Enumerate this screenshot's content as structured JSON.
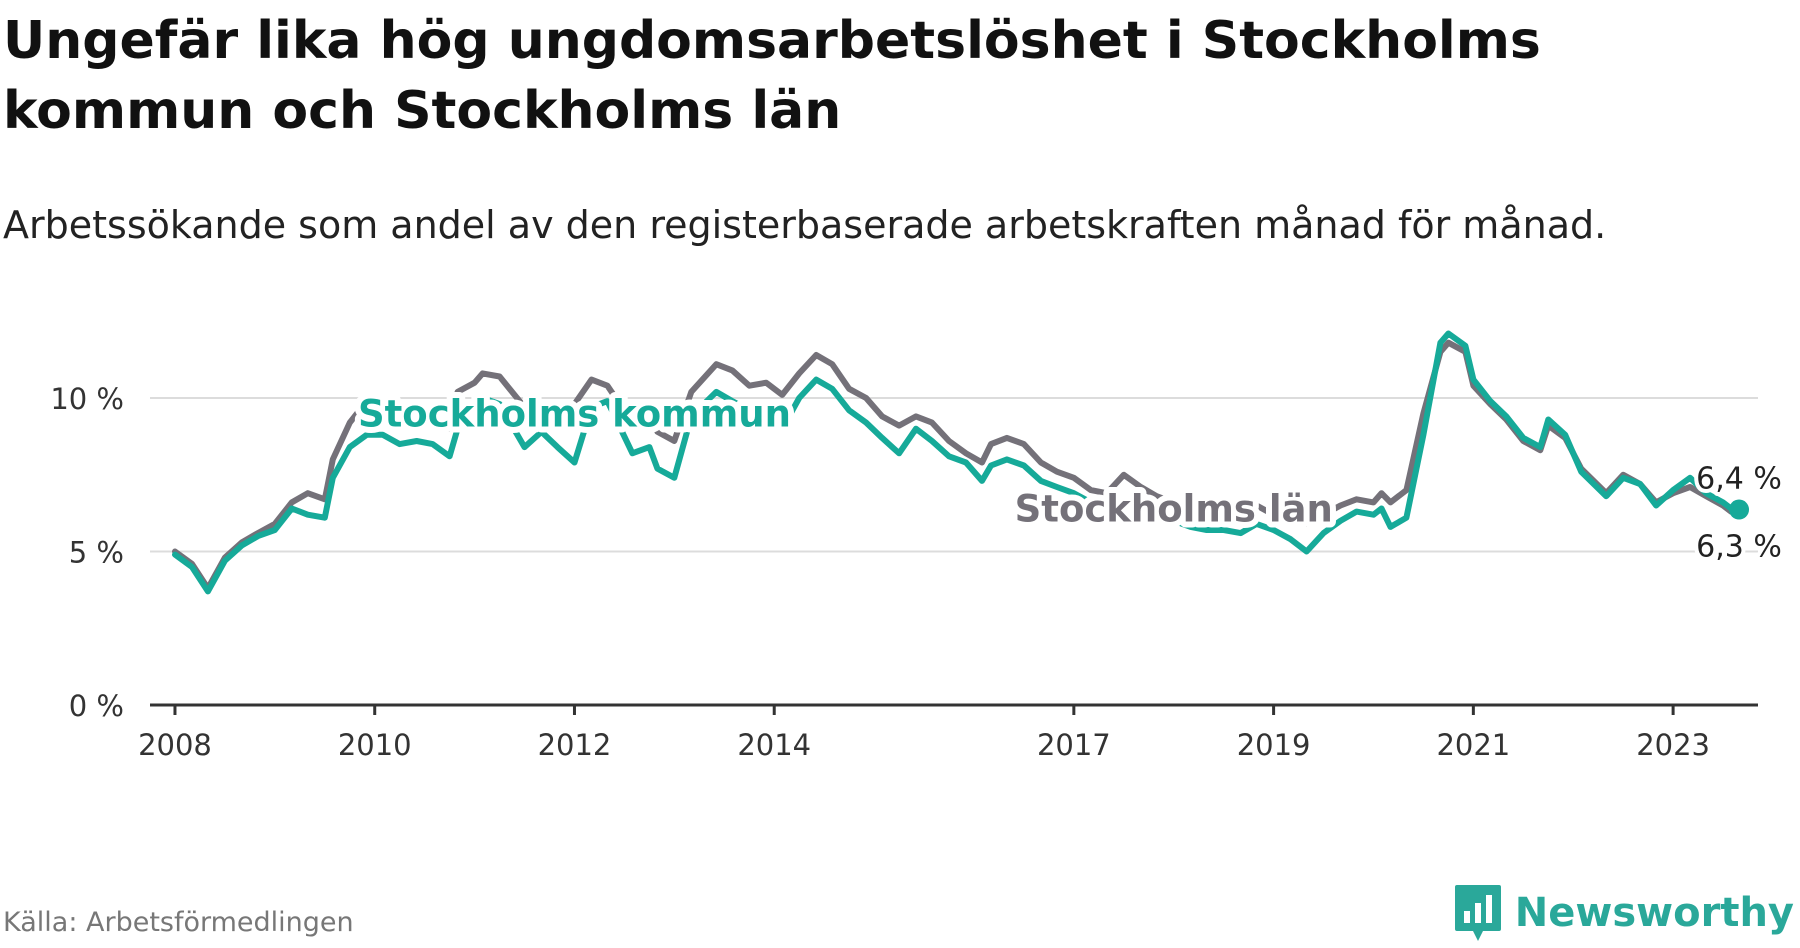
{
  "title": "Ungefär lika hög ungdomsarbetslöshet i Stockholms kommun och Stockholms län",
  "subtitle": "Arbetssökande som andel av den registerbaserade arbetskraften månad för månad.",
  "source": "Källa: Arbetsförmedlingen",
  "brand": "Newsworthy",
  "colors": {
    "kommun": "#16aa99",
    "lan": "#747179",
    "grid": "#dcdcdc",
    "axis": "#333333",
    "brand": "#2aa89a"
  },
  "chart_data": {
    "type": "line",
    "title": "Ungefär lika hög ungdomsarbetslöshet i Stockholms kommun och Stockholms län",
    "xlabel": "",
    "ylabel": "",
    "xlim": [
      2007.75,
      2023.85
    ],
    "ylim": [
      0,
      12.5
    ],
    "y_ticks": [
      0,
      5,
      10
    ],
    "y_tick_labels": [
      "0 %",
      "5 %",
      "10 %"
    ],
    "x_ticks": [
      2008,
      2010,
      2012,
      2014,
      2017,
      2019,
      2021,
      2023
    ],
    "x_tick_labels": [
      "2008",
      "2010",
      "2012",
      "2014",
      "2017",
      "2019",
      "2021",
      "2023"
    ],
    "grid": true,
    "series": [
      {
        "name": "Stockholms län",
        "color": "#747179",
        "end_label": "6,3 %",
        "points": [
          [
            2008.0,
            5.0
          ],
          [
            2008.17,
            4.6
          ],
          [
            2008.33,
            3.8
          ],
          [
            2008.5,
            4.8
          ],
          [
            2008.67,
            5.3
          ],
          [
            2008.83,
            5.6
          ],
          [
            2009.0,
            5.9
          ],
          [
            2009.17,
            6.6
          ],
          [
            2009.33,
            6.9
          ],
          [
            2009.5,
            6.7
          ],
          [
            2009.58,
            8.0
          ],
          [
            2009.75,
            9.2
          ],
          [
            2009.92,
            9.9
          ],
          [
            2010.08,
            9.8
          ],
          [
            2010.25,
            9.5
          ],
          [
            2010.42,
            9.7
          ],
          [
            2010.58,
            9.6
          ],
          [
            2010.75,
            9.0
          ],
          [
            2010.83,
            10.2
          ],
          [
            2011.0,
            10.5
          ],
          [
            2011.08,
            10.8
          ],
          [
            2011.25,
            10.7
          ],
          [
            2011.5,
            9.7
          ],
          [
            2011.67,
            9.8
          ],
          [
            2011.83,
            9.4
          ],
          [
            2012.0,
            9.8
          ],
          [
            2012.17,
            10.6
          ],
          [
            2012.33,
            10.4
          ],
          [
            2012.58,
            9.2
          ],
          [
            2012.75,
            9.7
          ],
          [
            2012.83,
            8.9
          ],
          [
            2013.0,
            8.6
          ],
          [
            2013.17,
            10.2
          ],
          [
            2013.42,
            11.1
          ],
          [
            2013.58,
            10.9
          ],
          [
            2013.75,
            10.4
          ],
          [
            2013.92,
            10.5
          ],
          [
            2014.08,
            10.1
          ],
          [
            2014.25,
            10.8
          ],
          [
            2014.42,
            11.4
          ],
          [
            2014.58,
            11.1
          ],
          [
            2014.75,
            10.3
          ],
          [
            2014.92,
            10.0
          ],
          [
            2015.08,
            9.4
          ],
          [
            2015.25,
            9.1
          ],
          [
            2015.42,
            9.4
          ],
          [
            2015.58,
            9.2
          ],
          [
            2015.75,
            8.6
          ],
          [
            2015.92,
            8.2
          ],
          [
            2016.08,
            7.9
          ],
          [
            2016.17,
            8.5
          ],
          [
            2016.33,
            8.7
          ],
          [
            2016.5,
            8.5
          ],
          [
            2016.67,
            7.9
          ],
          [
            2016.83,
            7.6
          ],
          [
            2017.0,
            7.4
          ],
          [
            2017.17,
            7.0
          ],
          [
            2017.33,
            6.9
          ],
          [
            2017.5,
            7.5
          ],
          [
            2017.67,
            7.1
          ],
          [
            2017.83,
            6.8
          ],
          [
            2018.0,
            6.6
          ],
          [
            2018.17,
            6.5
          ],
          [
            2018.33,
            6.2
          ],
          [
            2018.5,
            6.3
          ],
          [
            2018.67,
            6.1
          ],
          [
            2018.83,
            6.5
          ],
          [
            2019.0,
            6.2
          ],
          [
            2019.17,
            6.1
          ],
          [
            2019.33,
            5.9
          ],
          [
            2019.5,
            6.2
          ],
          [
            2019.67,
            6.5
          ],
          [
            2019.83,
            6.7
          ],
          [
            2020.0,
            6.6
          ],
          [
            2020.08,
            6.9
          ],
          [
            2020.17,
            6.6
          ],
          [
            2020.33,
            7.0
          ],
          [
            2020.5,
            9.5
          ],
          [
            2020.67,
            11.5
          ],
          [
            2020.75,
            11.8
          ],
          [
            2020.92,
            11.5
          ],
          [
            2021.0,
            10.4
          ],
          [
            2021.17,
            9.8
          ],
          [
            2021.33,
            9.3
          ],
          [
            2021.5,
            8.6
          ],
          [
            2021.67,
            8.3
          ],
          [
            2021.75,
            9.1
          ],
          [
            2021.92,
            8.7
          ],
          [
            2022.08,
            7.7
          ],
          [
            2022.33,
            6.9
          ],
          [
            2022.5,
            7.5
          ],
          [
            2022.67,
            7.2
          ],
          [
            2022.83,
            6.6
          ],
          [
            2023.0,
            6.9
          ],
          [
            2023.17,
            7.1
          ],
          [
            2023.33,
            6.8
          ],
          [
            2023.5,
            6.5
          ],
          [
            2023.58,
            6.3
          ]
        ]
      },
      {
        "name": "Stockholms kommun",
        "color": "#16aa99",
        "end_label": "6,4 %",
        "points": [
          [
            2008.0,
            4.9
          ],
          [
            2008.17,
            4.5
          ],
          [
            2008.33,
            3.7
          ],
          [
            2008.5,
            4.7
          ],
          [
            2008.67,
            5.2
          ],
          [
            2008.83,
            5.5
          ],
          [
            2009.0,
            5.7
          ],
          [
            2009.17,
            6.4
          ],
          [
            2009.33,
            6.2
          ],
          [
            2009.5,
            6.1
          ],
          [
            2009.58,
            7.4
          ],
          [
            2009.75,
            8.4
          ],
          [
            2009.92,
            8.8
          ],
          [
            2010.08,
            8.8
          ],
          [
            2010.25,
            8.5
          ],
          [
            2010.42,
            8.6
          ],
          [
            2010.58,
            8.5
          ],
          [
            2010.75,
            8.1
          ],
          [
            2010.83,
            9.0
          ],
          [
            2011.0,
            9.5
          ],
          [
            2011.08,
            10.0
          ],
          [
            2011.25,
            9.8
          ],
          [
            2011.5,
            8.4
          ],
          [
            2011.67,
            8.9
          ],
          [
            2011.83,
            8.4
          ],
          [
            2012.0,
            7.9
          ],
          [
            2012.17,
            9.7
          ],
          [
            2012.33,
            9.9
          ],
          [
            2012.58,
            8.2
          ],
          [
            2012.75,
            8.4
          ],
          [
            2012.83,
            7.7
          ],
          [
            2013.0,
            7.4
          ],
          [
            2013.17,
            9.4
          ],
          [
            2013.42,
            10.2
          ],
          [
            2013.58,
            9.9
          ],
          [
            2013.75,
            9.6
          ],
          [
            2013.92,
            9.5
          ],
          [
            2014.08,
            9.0
          ],
          [
            2014.25,
            10.0
          ],
          [
            2014.42,
            10.6
          ],
          [
            2014.58,
            10.3
          ],
          [
            2014.75,
            9.6
          ],
          [
            2014.92,
            9.2
          ],
          [
            2015.08,
            8.7
          ],
          [
            2015.25,
            8.2
          ],
          [
            2015.42,
            9.0
          ],
          [
            2015.58,
            8.6
          ],
          [
            2015.75,
            8.1
          ],
          [
            2015.92,
            7.9
          ],
          [
            2016.08,
            7.3
          ],
          [
            2016.17,
            7.8
          ],
          [
            2016.33,
            8.0
          ],
          [
            2016.5,
            7.8
          ],
          [
            2016.67,
            7.3
          ],
          [
            2016.83,
            7.1
          ],
          [
            2017.0,
            6.9
          ],
          [
            2017.17,
            6.6
          ],
          [
            2017.33,
            6.1
          ],
          [
            2017.5,
            6.0
          ],
          [
            2017.67,
            6.2
          ],
          [
            2017.83,
            6.1
          ],
          [
            2018.0,
            6.0
          ],
          [
            2018.17,
            5.8
          ],
          [
            2018.33,
            5.7
          ],
          [
            2018.5,
            5.7
          ],
          [
            2018.67,
            5.6
          ],
          [
            2018.83,
            5.9
          ],
          [
            2019.0,
            5.7
          ],
          [
            2019.17,
            5.4
          ],
          [
            2019.33,
            5.0
          ],
          [
            2019.5,
            5.6
          ],
          [
            2019.67,
            6.0
          ],
          [
            2019.83,
            6.3
          ],
          [
            2020.0,
            6.2
          ],
          [
            2020.08,
            6.4
          ],
          [
            2020.17,
            5.8
          ],
          [
            2020.33,
            6.1
          ],
          [
            2020.5,
            8.8
          ],
          [
            2020.67,
            11.8
          ],
          [
            2020.75,
            12.1
          ],
          [
            2020.92,
            11.7
          ],
          [
            2021.0,
            10.6
          ],
          [
            2021.17,
            9.9
          ],
          [
            2021.33,
            9.4
          ],
          [
            2021.5,
            8.7
          ],
          [
            2021.67,
            8.4
          ],
          [
            2021.75,
            9.3
          ],
          [
            2021.92,
            8.8
          ],
          [
            2022.08,
            7.6
          ],
          [
            2022.33,
            6.8
          ],
          [
            2022.5,
            7.4
          ],
          [
            2022.67,
            7.2
          ],
          [
            2022.83,
            6.5
          ],
          [
            2023.0,
            7.0
          ],
          [
            2023.17,
            7.4
          ],
          [
            2023.33,
            6.9
          ],
          [
            2023.5,
            6.6
          ],
          [
            2023.58,
            6.4
          ]
        ]
      }
    ],
    "annotations": [
      {
        "text": "Stockholms kommun",
        "series": "Stockholms kommun",
        "x": 2012.0,
        "y": 9.5
      },
      {
        "text": "Stockholms län",
        "series": "Stockholms län",
        "x": 2018.0,
        "y": 6.4
      }
    ]
  }
}
